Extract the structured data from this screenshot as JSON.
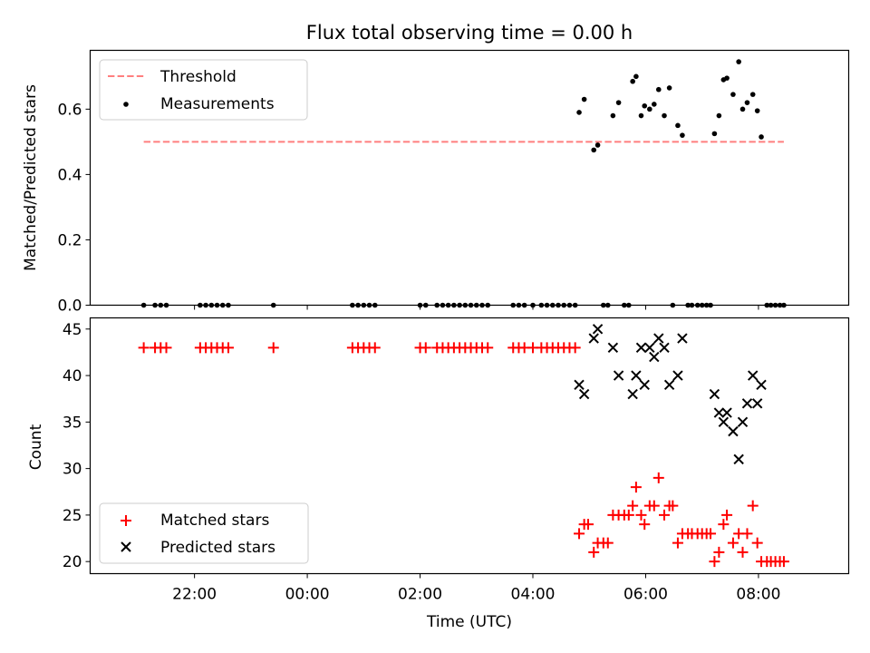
{
  "colors": {
    "threshold": "#ff7f7f",
    "measurement": "#000000",
    "matched": "#ff0000",
    "predicted": "#000000"
  },
  "chart_data": [
    {
      "type": "scatter",
      "title": "Flux total observing time = 0.00 h",
      "ylabel": "Matched/Predicted stars",
      "xlabel": "",
      "x_axis": "time",
      "xlim_hours": [
        -3.85,
        9.6
      ],
      "ylim": [
        0,
        0.78
      ],
      "yticks": [
        0.0,
        0.2,
        0.4,
        0.6
      ],
      "ytick_labels": [
        "0.0",
        "0.2",
        "0.4",
        "0.6"
      ],
      "legend": {
        "placement": "upper-left",
        "entries": [
          "Threshold",
          "Measurements"
        ]
      },
      "threshold": {
        "name": "Threshold",
        "value": 0.5,
        "x_range_hours": [
          -2.9,
          8.45
        ]
      },
      "measurements": {
        "name": "Measurements",
        "points": [
          [
            -2.9,
            0
          ],
          [
            -2.7,
            0
          ],
          [
            -2.6,
            0
          ],
          [
            -2.5,
            0
          ],
          [
            -1.9,
            0
          ],
          [
            -1.8,
            0
          ],
          [
            -1.7,
            0
          ],
          [
            -1.6,
            0
          ],
          [
            -1.5,
            0
          ],
          [
            -1.4,
            0
          ],
          [
            -0.6,
            0
          ],
          [
            0.8,
            0
          ],
          [
            0.9,
            0
          ],
          [
            1.0,
            0
          ],
          [
            1.1,
            0
          ],
          [
            1.2,
            0
          ],
          [
            2.0,
            0
          ],
          [
            2.1,
            0
          ],
          [
            2.3,
            0
          ],
          [
            2.4,
            0
          ],
          [
            2.5,
            0
          ],
          [
            2.6,
            0
          ],
          [
            2.7,
            0
          ],
          [
            2.8,
            0
          ],
          [
            2.9,
            0
          ],
          [
            3.0,
            0
          ],
          [
            3.1,
            0
          ],
          [
            3.2,
            0
          ],
          [
            3.65,
            0
          ],
          [
            3.75,
            0
          ],
          [
            3.85,
            0
          ],
          [
            4.0,
            0
          ],
          [
            4.15,
            0
          ],
          [
            4.25,
            0
          ],
          [
            4.35,
            0
          ],
          [
            4.45,
            0
          ],
          [
            4.55,
            0
          ],
          [
            4.65,
            0
          ],
          [
            4.75,
            0
          ],
          [
            4.82,
            0.59
          ],
          [
            4.91,
            0.63
          ],
          [
            5.08,
            0.475
          ],
          [
            5.15,
            0.49
          ],
          [
            5.25,
            0
          ],
          [
            5.33,
            0
          ],
          [
            5.42,
            0.58
          ],
          [
            5.52,
            0.62
          ],
          [
            5.62,
            0
          ],
          [
            5.7,
            0
          ],
          [
            5.77,
            0.685
          ],
          [
            5.83,
            0.7
          ],
          [
            5.92,
            0.58
          ],
          [
            5.98,
            0.61
          ],
          [
            6.07,
            0.6
          ],
          [
            6.15,
            0.615
          ],
          [
            6.23,
            0.66
          ],
          [
            6.33,
            0.58
          ],
          [
            6.42,
            0.665
          ],
          [
            6.48,
            0
          ],
          [
            6.57,
            0.55
          ],
          [
            6.65,
            0.52
          ],
          [
            6.75,
            0
          ],
          [
            6.82,
            0
          ],
          [
            6.92,
            0
          ],
          [
            7.0,
            0
          ],
          [
            7.08,
            0
          ],
          [
            7.15,
            0
          ],
          [
            7.22,
            0.525
          ],
          [
            7.3,
            0.58
          ],
          [
            7.38,
            0.69
          ],
          [
            7.44,
            0.695
          ],
          [
            7.55,
            0.645
          ],
          [
            7.65,
            0.745
          ],
          [
            7.72,
            0.6
          ],
          [
            7.8,
            0.62
          ],
          [
            7.9,
            0.645
          ],
          [
            7.98,
            0.595
          ],
          [
            8.05,
            0.515
          ],
          [
            8.15,
            0
          ],
          [
            8.22,
            0
          ],
          [
            8.3,
            0
          ],
          [
            8.38,
            0
          ],
          [
            8.45,
            0
          ]
        ]
      }
    },
    {
      "type": "scatter",
      "title": "",
      "ylabel": "Count",
      "xlabel": "Time (UTC)",
      "x_axis": "time",
      "xlim_hours": [
        -3.85,
        9.6
      ],
      "ylim": [
        18.7,
        46.2
      ],
      "yticks": [
        20,
        25,
        30,
        35,
        40,
        45
      ],
      "ytick_labels": [
        "20",
        "25",
        "30",
        "35",
        "40",
        "45"
      ],
      "xtick_hours": [
        -2,
        0,
        2,
        4,
        6,
        8
      ],
      "xtick_labels": [
        "22:00",
        "00:00",
        "02:00",
        "04:00",
        "06:00",
        "08:00"
      ],
      "legend": {
        "placement": "lower-left",
        "entries": [
          "Matched stars",
          "Predicted stars"
        ]
      },
      "series": [
        {
          "name": "Matched stars",
          "marker": "plus",
          "points": [
            [
              -2.9,
              43
            ],
            [
              -2.7,
              43
            ],
            [
              -2.6,
              43
            ],
            [
              -2.5,
              43
            ],
            [
              -1.9,
              43
            ],
            [
              -1.8,
              43
            ],
            [
              -1.7,
              43
            ],
            [
              -1.6,
              43
            ],
            [
              -1.5,
              43
            ],
            [
              -1.4,
              43
            ],
            [
              -0.6,
              43
            ],
            [
              0.8,
              43
            ],
            [
              0.9,
              43
            ],
            [
              1.0,
              43
            ],
            [
              1.1,
              43
            ],
            [
              1.2,
              43
            ],
            [
              2.0,
              43
            ],
            [
              2.1,
              43
            ],
            [
              2.3,
              43
            ],
            [
              2.4,
              43
            ],
            [
              2.5,
              43
            ],
            [
              2.6,
              43
            ],
            [
              2.7,
              43
            ],
            [
              2.8,
              43
            ],
            [
              2.9,
              43
            ],
            [
              3.0,
              43
            ],
            [
              3.1,
              43
            ],
            [
              3.2,
              43
            ],
            [
              3.65,
              43
            ],
            [
              3.75,
              43
            ],
            [
              3.85,
              43
            ],
            [
              4.0,
              43
            ],
            [
              4.15,
              43
            ],
            [
              4.25,
              43
            ],
            [
              4.35,
              43
            ],
            [
              4.45,
              43
            ],
            [
              4.55,
              43
            ],
            [
              4.65,
              43
            ],
            [
              4.75,
              43
            ],
            [
              4.82,
              23
            ],
            [
              4.91,
              24
            ],
            [
              4.98,
              24
            ],
            [
              5.08,
              21
            ],
            [
              5.15,
              22
            ],
            [
              5.25,
              22
            ],
            [
              5.33,
              22
            ],
            [
              5.42,
              25
            ],
            [
              5.52,
              25
            ],
            [
              5.62,
              25
            ],
            [
              5.7,
              25
            ],
            [
              5.77,
              26
            ],
            [
              5.83,
              28
            ],
            [
              5.92,
              25
            ],
            [
              5.98,
              24
            ],
            [
              6.07,
              26
            ],
            [
              6.15,
              26
            ],
            [
              6.23,
              29
            ],
            [
              6.33,
              25
            ],
            [
              6.42,
              26
            ],
            [
              6.48,
              26
            ],
            [
              6.57,
              22
            ],
            [
              6.65,
              23
            ],
            [
              6.75,
              23
            ],
            [
              6.82,
              23
            ],
            [
              6.92,
              23
            ],
            [
              7.0,
              23
            ],
            [
              7.08,
              23
            ],
            [
              7.15,
              23
            ],
            [
              7.22,
              20
            ],
            [
              7.3,
              21
            ],
            [
              7.38,
              24
            ],
            [
              7.44,
              25
            ],
            [
              7.55,
              22
            ],
            [
              7.65,
              23
            ],
            [
              7.72,
              21
            ],
            [
              7.8,
              23
            ],
            [
              7.9,
              26
            ],
            [
              7.98,
              22
            ],
            [
              8.05,
              20
            ],
            [
              8.15,
              20
            ],
            [
              8.22,
              20
            ],
            [
              8.3,
              20
            ],
            [
              8.38,
              20
            ],
            [
              8.45,
              20
            ]
          ]
        },
        {
          "name": "Predicted stars",
          "marker": "x",
          "points": [
            [
              4.82,
              39
            ],
            [
              4.91,
              38
            ],
            [
              5.08,
              44
            ],
            [
              5.15,
              45
            ],
            [
              5.42,
              43
            ],
            [
              5.52,
              40
            ],
            [
              5.77,
              38
            ],
            [
              5.83,
              40
            ],
            [
              5.92,
              43
            ],
            [
              5.98,
              39
            ],
            [
              6.07,
              43
            ],
            [
              6.15,
              42
            ],
            [
              6.23,
              44
            ],
            [
              6.33,
              43
            ],
            [
              6.42,
              39
            ],
            [
              6.57,
              40
            ],
            [
              6.65,
              44
            ],
            [
              7.22,
              38
            ],
            [
              7.3,
              36
            ],
            [
              7.38,
              35
            ],
            [
              7.44,
              36
            ],
            [
              7.55,
              34
            ],
            [
              7.65,
              31
            ],
            [
              7.72,
              35
            ],
            [
              7.8,
              37
            ],
            [
              7.9,
              40
            ],
            [
              7.98,
              37
            ],
            [
              8.05,
              39
            ]
          ]
        }
      ]
    }
  ]
}
